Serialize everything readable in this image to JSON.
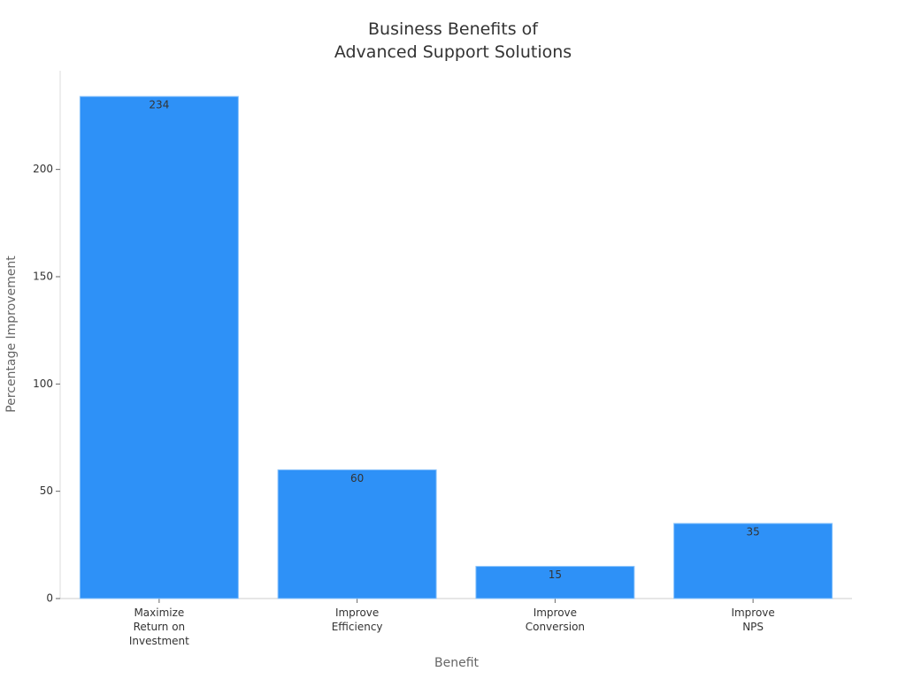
{
  "chart_data": {
    "type": "bar",
    "title": "Business Benefits of\nAdvanced Support Solutions",
    "x_label": "Benefit",
    "y_label": "Percentage Improvement",
    "categories": [
      "Maximize\nReturn on\nInvestment",
      "Improve\nEfficiency",
      "Improve\nConversion",
      "Improve\nNPS"
    ],
    "values": [
      234,
      60,
      15,
      35
    ],
    "color": "#2e91f7",
    "ylim": [
      0,
      246
    ],
    "yticks": [
      0,
      50,
      100,
      150,
      200
    ],
    "grid": false
  }
}
